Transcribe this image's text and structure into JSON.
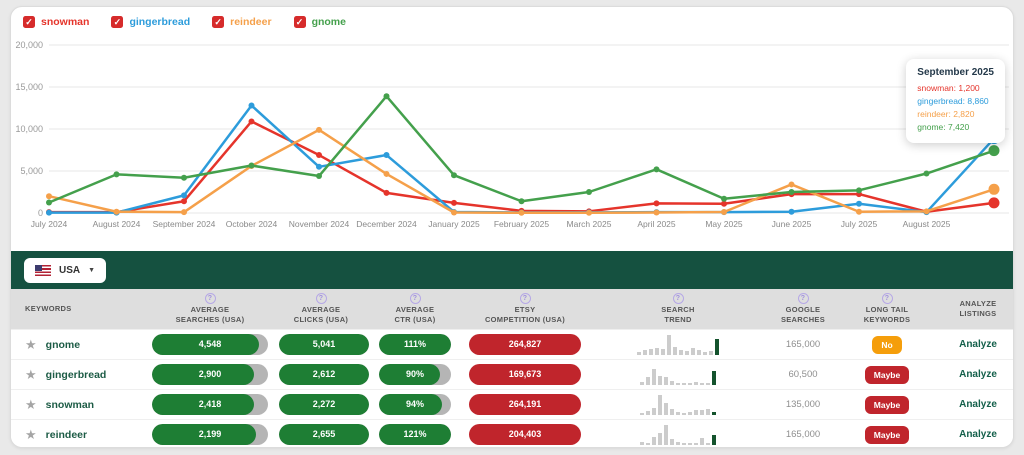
{
  "colors": {
    "snowman": "#e5342b",
    "gingerbread": "#2d9cdb",
    "reindeer": "#f5a04a",
    "gnome": "#44a04c",
    "checkbox": "#d62b2b",
    "bar_green": "#155140",
    "pill_green": "#1e7e34",
    "pill_red": "#c0252c",
    "badge_orange": "#f59e0b"
  },
  "legend": {
    "check_glyph": "✓",
    "items": [
      {
        "label": "snowman",
        "color": "#e5342b",
        "checked": true
      },
      {
        "label": "gingerbread",
        "color": "#2d9cdb",
        "checked": true
      },
      {
        "label": "reindeer",
        "color": "#f5a04a",
        "checked": true
      },
      {
        "label": "gnome",
        "color": "#44a04c",
        "checked": true
      }
    ]
  },
  "chart_data": {
    "type": "line",
    "x": [
      "July 2024",
      "August 2024",
      "September 2024",
      "October 2024",
      "November 2024",
      "December 2024",
      "January 2025",
      "February 2025",
      "March 2025",
      "April 2025",
      "May 2025",
      "June 2025",
      "July 2025",
      "August 2025",
      "September 2025"
    ],
    "x_labels_shown": 14,
    "ylim": [
      0,
      20000
    ],
    "yticks": [
      {
        "label": "0",
        "value": 0
      },
      {
        "label": "5,000",
        "value": 5000
      },
      {
        "label": "10,000",
        "value": 10000
      },
      {
        "label": "15,000",
        "value": 15000
      },
      {
        "label": "20,000",
        "value": 20000
      }
    ],
    "grid": true,
    "series": [
      {
        "name": "snowman",
        "color": "#e5342b",
        "values": [
          100,
          100,
          1400,
          10900,
          6900,
          2400,
          1200,
          250,
          200,
          1150,
          1100,
          2250,
          2250,
          150,
          1200
        ]
      },
      {
        "name": "gingerbread",
        "color": "#2d9cdb",
        "values": [
          50,
          50,
          2100,
          12800,
          5500,
          6900,
          120,
          60,
          80,
          100,
          100,
          150,
          1100,
          100,
          8860
        ]
      },
      {
        "name": "reindeer",
        "color": "#f5a04a",
        "values": [
          2000,
          150,
          100,
          5600,
          9900,
          4650,
          60,
          30,
          30,
          60,
          120,
          3400,
          150,
          200,
          2820
        ]
      },
      {
        "name": "gnome",
        "color": "#44a04c",
        "values": [
          1250,
          4600,
          4200,
          5650,
          4400,
          13900,
          4500,
          1400,
          2500,
          5200,
          1700,
          2500,
          2700,
          4700,
          7420
        ]
      }
    ],
    "tooltip": {
      "title": "September 2025",
      "values": [
        {
          "label": "snowman",
          "value": "1,200",
          "color": "#e5342b"
        },
        {
          "label": "gingerbread",
          "value": "8,860",
          "color": "#2d9cdb"
        },
        {
          "label": "reindeer",
          "value": "2,820",
          "color": "#f5a04a"
        },
        {
          "label": "gnome",
          "value": "7,420",
          "color": "#44a04c"
        }
      ]
    }
  },
  "toolbar": {
    "country": "USA",
    "flag_icon": "us-flag",
    "caret_glyph": "▼"
  },
  "table": {
    "headers": [
      {
        "lines": [
          "KEYWORDS"
        ],
        "help": false
      },
      {
        "lines": [
          "AVERAGE",
          "SEARCHES (USA)"
        ],
        "help": true
      },
      {
        "lines": [
          "AVERAGE",
          "CLICKS (USA)"
        ],
        "help": true
      },
      {
        "lines": [
          "AVERAGE",
          "CTR (USA)"
        ],
        "help": true
      },
      {
        "lines": [
          "ETSY",
          "COMPETITION (USA)"
        ],
        "help": true
      },
      {
        "lines": [
          "SEARCH",
          "TREND"
        ],
        "help": true
      },
      {
        "lines": [
          "GOOGLE",
          "SEARCHES"
        ],
        "help": true
      },
      {
        "lines": [
          "LONG TAIL",
          "KEYWORDS"
        ],
        "help": true
      },
      {
        "lines": [
          "ANALYZE",
          "LISTINGS"
        ],
        "help": false
      }
    ],
    "star_glyph": "★",
    "help_glyph": "?",
    "rows": [
      {
        "keyword": "gnome",
        "searches": "4,548",
        "searches_fill": 92,
        "clicks": "5,041",
        "clicks_fill": 100,
        "ctr": "111%",
        "ctr_fill": 100,
        "competition": "264,827",
        "trend": [
          1,
          2,
          2.5,
          3,
          2.5,
          9,
          3.5,
          2,
          1.5,
          3,
          2,
          1,
          1.5,
          7
        ],
        "google": "165,000",
        "longtail": {
          "label": "No",
          "color": "#f59e0b"
        },
        "analyze": "Analyze"
      },
      {
        "keyword": "gingerbread",
        "searches": "2,900",
        "searches_fill": 88,
        "clicks": "2,612",
        "clicks_fill": 100,
        "ctr": "90%",
        "ctr_fill": 85,
        "competition": "169,673",
        "trend": [
          1,
          3.5,
          7,
          4,
          3.5,
          1.5,
          0.8,
          0.8,
          0.8,
          1,
          0.8,
          0.8,
          6
        ],
        "google": "60,500",
        "longtail": {
          "label": "Maybe",
          "color": "#c0252c"
        },
        "analyze": "Analyze"
      },
      {
        "keyword": "snowman",
        "searches": "2,418",
        "searches_fill": 88,
        "clicks": "2,272",
        "clicks_fill": 100,
        "ctr": "94%",
        "ctr_fill": 88,
        "competition": "264,191",
        "trend": [
          0.8,
          1.5,
          3,
          9,
          5,
          2.5,
          1,
          0.8,
          1,
          2,
          2.2,
          2.5,
          1.2
        ],
        "google": "135,000",
        "longtail": {
          "label": "Maybe",
          "color": "#c0252c"
        },
        "analyze": "Analyze"
      },
      {
        "keyword": "reindeer",
        "searches": "2,199",
        "searches_fill": 90,
        "clicks": "2,655",
        "clicks_fill": 100,
        "ctr": "121%",
        "ctr_fill": 100,
        "competition": "204,403",
        "trend": [
          1,
          0.8,
          3.5,
          5,
          9,
          2.5,
          1,
          0.8,
          0.8,
          0.8,
          3,
          0.8,
          4.5
        ],
        "google": "165,000",
        "longtail": {
          "label": "Maybe",
          "color": "#c0252c"
        },
        "analyze": "Analyze"
      }
    ]
  }
}
